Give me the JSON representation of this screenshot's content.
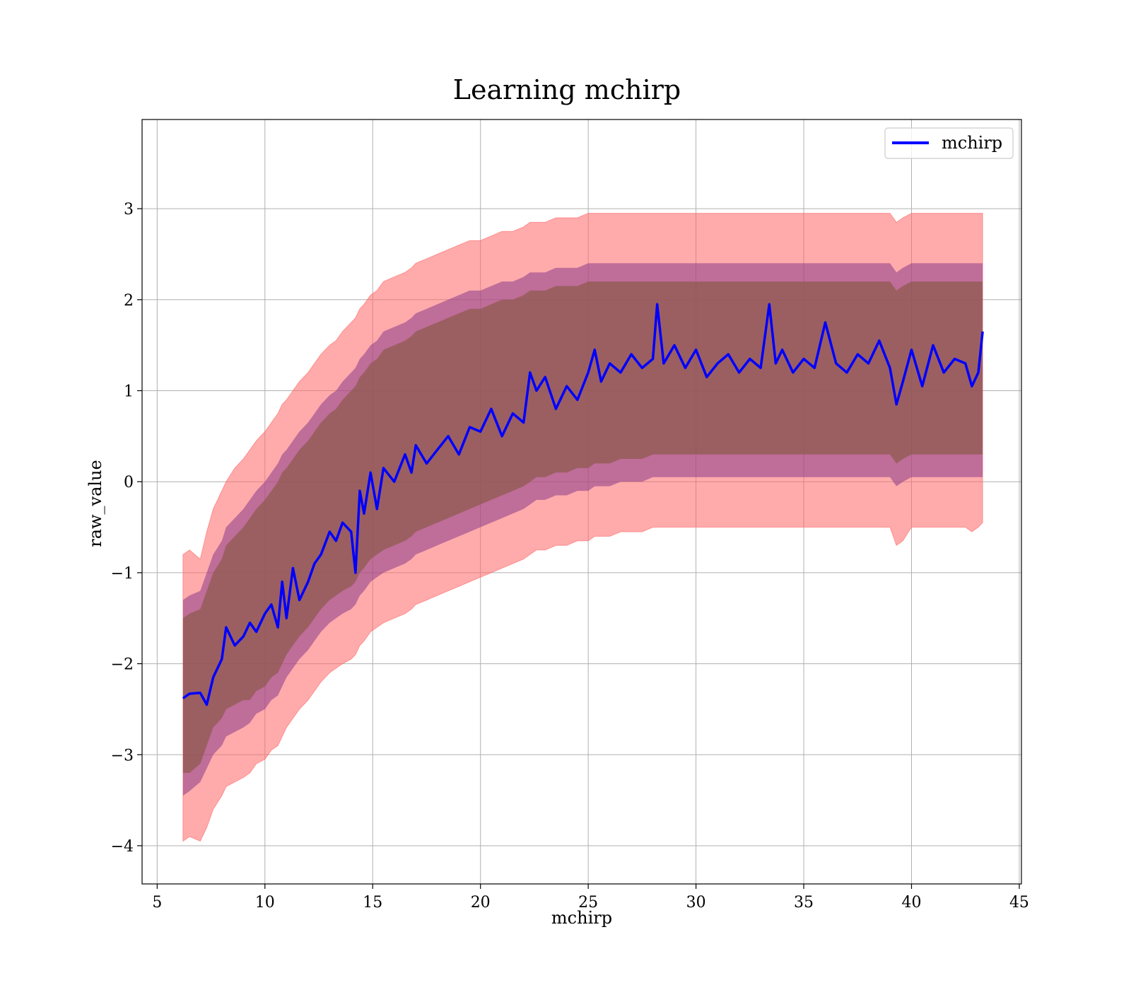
{
  "chart_data": {
    "type": "line",
    "title": "Learning mchirp",
    "xlabel": "mchirp",
    "ylabel": "raw_value",
    "xlim": [
      4.3,
      45.1
    ],
    "ylim": [
      -4.42,
      3.98
    ],
    "x_ticks": [
      5,
      10,
      15,
      20,
      25,
      30,
      35,
      40,
      45
    ],
    "y_ticks": [
      -4,
      -3,
      -2,
      -1,
      0,
      1,
      2,
      3
    ],
    "x_tick_labels": [
      "5",
      "10",
      "15",
      "20",
      "25",
      "30",
      "35",
      "40",
      "45"
    ],
    "y_tick_labels": [
      "−4",
      "−3",
      "−2",
      "−1",
      "0",
      "1",
      "2",
      "3"
    ],
    "grid": true,
    "legend": {
      "position": "top-right",
      "entries": [
        "mchirp"
      ]
    },
    "colors": {
      "line": "#0000ff",
      "band_outer": "#ff6666",
      "band_mid": "#8b3a8b",
      "band_inner": "#8b5a4a"
    },
    "series": [
      {
        "name": "mchirp",
        "x": [
          6.2,
          6.5,
          7.0,
          7.3,
          7.6,
          8.0,
          8.2,
          8.6,
          9.0,
          9.3,
          9.6,
          10.0,
          10.3,
          10.6,
          10.8,
          11.0,
          11.3,
          11.6,
          12.0,
          12.3,
          12.6,
          13.0,
          13.3,
          13.6,
          14.0,
          14.2,
          14.4,
          14.6,
          14.9,
          15.2,
          15.5,
          16.0,
          16.5,
          16.8,
          17.0,
          17.5,
          18.0,
          18.5,
          19.0,
          19.5,
          20.0,
          20.5,
          21.0,
          21.5,
          22.0,
          22.3,
          22.6,
          23.0,
          23.5,
          24.0,
          24.5,
          25.0,
          25.3,
          25.6,
          26.0,
          26.5,
          27.0,
          27.5,
          28.0,
          28.2,
          28.5,
          29.0,
          29.5,
          30.0,
          30.5,
          31.0,
          31.5,
          32.0,
          32.5,
          33.0,
          33.4,
          33.7,
          34.0,
          34.5,
          35.0,
          35.5,
          36.0,
          36.5,
          37.0,
          37.5,
          38.0,
          38.5,
          39.0,
          39.3,
          39.6,
          40.0,
          40.5,
          41.0,
          41.5,
          42.0,
          42.5,
          42.8,
          43.1,
          43.3
        ],
        "y": [
          -2.38,
          -2.33,
          -2.32,
          -2.45,
          -2.15,
          -1.95,
          -1.6,
          -1.8,
          -1.7,
          -1.55,
          -1.65,
          -1.45,
          -1.35,
          -1.6,
          -1.1,
          -1.5,
          -0.95,
          -1.3,
          -1.1,
          -0.9,
          -0.8,
          -0.55,
          -0.65,
          -0.45,
          -0.55,
          -1.0,
          -0.1,
          -0.35,
          0.1,
          -0.3,
          0.15,
          0.0,
          0.3,
          0.1,
          0.4,
          0.2,
          0.35,
          0.5,
          0.3,
          0.6,
          0.55,
          0.8,
          0.5,
          0.75,
          0.65,
          1.2,
          1.0,
          1.15,
          0.8,
          1.05,
          0.9,
          1.2,
          1.45,
          1.1,
          1.3,
          1.2,
          1.4,
          1.25,
          1.35,
          1.95,
          1.3,
          1.5,
          1.25,
          1.45,
          1.15,
          1.3,
          1.4,
          1.2,
          1.35,
          1.25,
          1.95,
          1.3,
          1.45,
          1.2,
          1.35,
          1.25,
          1.75,
          1.3,
          1.2,
          1.4,
          1.3,
          1.55,
          1.25,
          0.85,
          1.1,
          1.45,
          1.05,
          1.5,
          1.2,
          1.35,
          1.3,
          1.05,
          1.2,
          1.65
        ],
        "band_inner_lower": [
          -3.2,
          -3.2,
          -3.1,
          -2.9,
          -2.7,
          -2.6,
          -2.5,
          -2.45,
          -2.4,
          -2.4,
          -2.3,
          -2.25,
          -2.15,
          -2.1,
          -2.0,
          -1.9,
          -1.8,
          -1.7,
          -1.6,
          -1.5,
          -1.4,
          -1.3,
          -1.25,
          -1.2,
          -1.15,
          -1.1,
          -1.0,
          -0.95,
          -0.85,
          -0.8,
          -0.75,
          -0.7,
          -0.65,
          -0.6,
          -0.55,
          -0.5,
          -0.45,
          -0.4,
          -0.35,
          -0.3,
          -0.25,
          -0.2,
          -0.15,
          -0.1,
          -0.05,
          0.0,
          0.05,
          0.05,
          0.1,
          0.1,
          0.15,
          0.15,
          0.2,
          0.2,
          0.2,
          0.25,
          0.25,
          0.25,
          0.3,
          0.3,
          0.3,
          0.3,
          0.3,
          0.3,
          0.3,
          0.3,
          0.3,
          0.3,
          0.3,
          0.3,
          0.3,
          0.3,
          0.3,
          0.3,
          0.3,
          0.3,
          0.3,
          0.3,
          0.3,
          0.3,
          0.3,
          0.3,
          0.3,
          0.2,
          0.25,
          0.3,
          0.3,
          0.3,
          0.3,
          0.3,
          0.3,
          0.3,
          0.3,
          0.3
        ],
        "band_inner_upper": [
          -1.5,
          -1.45,
          -1.4,
          -1.2,
          -1.0,
          -0.85,
          -0.7,
          -0.6,
          -0.5,
          -0.4,
          -0.3,
          -0.2,
          -0.1,
          0.0,
          0.1,
          0.15,
          0.25,
          0.35,
          0.45,
          0.55,
          0.65,
          0.75,
          0.8,
          0.9,
          1.0,
          1.05,
          1.15,
          1.2,
          1.3,
          1.35,
          1.45,
          1.5,
          1.55,
          1.6,
          1.65,
          1.7,
          1.75,
          1.8,
          1.85,
          1.9,
          1.9,
          1.95,
          2.0,
          2.0,
          2.05,
          2.1,
          2.1,
          2.1,
          2.15,
          2.15,
          2.15,
          2.2,
          2.2,
          2.2,
          2.2,
          2.2,
          2.2,
          2.2,
          2.2,
          2.2,
          2.2,
          2.2,
          2.2,
          2.2,
          2.2,
          2.2,
          2.2,
          2.2,
          2.2,
          2.2,
          2.2,
          2.2,
          2.2,
          2.2,
          2.2,
          2.2,
          2.2,
          2.2,
          2.2,
          2.2,
          2.2,
          2.2,
          2.2,
          2.1,
          2.15,
          2.2,
          2.2,
          2.2,
          2.2,
          2.2,
          2.2,
          2.2,
          2.2,
          2.2
        ],
        "band_mid_lower": [
          -3.45,
          -3.4,
          -3.3,
          -3.15,
          -3.0,
          -2.9,
          -2.8,
          -2.75,
          -2.7,
          -2.65,
          -2.55,
          -2.5,
          -2.4,
          -2.35,
          -2.25,
          -2.15,
          -2.05,
          -1.95,
          -1.85,
          -1.75,
          -1.65,
          -1.55,
          -1.5,
          -1.45,
          -1.4,
          -1.35,
          -1.25,
          -1.2,
          -1.1,
          -1.05,
          -1.0,
          -0.95,
          -0.9,
          -0.85,
          -0.8,
          -0.75,
          -0.7,
          -0.65,
          -0.6,
          -0.55,
          -0.5,
          -0.45,
          -0.4,
          -0.35,
          -0.3,
          -0.25,
          -0.2,
          -0.2,
          -0.15,
          -0.15,
          -0.1,
          -0.1,
          -0.05,
          -0.05,
          -0.05,
          0.0,
          0.0,
          0.0,
          0.05,
          0.05,
          0.05,
          0.05,
          0.05,
          0.05,
          0.05,
          0.05,
          0.05,
          0.05,
          0.05,
          0.05,
          0.05,
          0.05,
          0.05,
          0.05,
          0.05,
          0.05,
          0.05,
          0.05,
          0.05,
          0.05,
          0.05,
          0.05,
          0.05,
          -0.05,
          0.0,
          0.05,
          0.05,
          0.05,
          0.05,
          0.05,
          0.05,
          0.05,
          0.05,
          0.05
        ],
        "band_mid_upper": [
          -1.3,
          -1.25,
          -1.2,
          -1.0,
          -0.8,
          -0.65,
          -0.5,
          -0.4,
          -0.3,
          -0.2,
          -0.1,
          0.0,
          0.1,
          0.2,
          0.3,
          0.35,
          0.45,
          0.55,
          0.65,
          0.75,
          0.85,
          0.95,
          1.0,
          1.1,
          1.2,
          1.25,
          1.35,
          1.4,
          1.5,
          1.55,
          1.65,
          1.7,
          1.75,
          1.8,
          1.85,
          1.9,
          1.95,
          2.0,
          2.05,
          2.1,
          2.1,
          2.15,
          2.2,
          2.2,
          2.25,
          2.3,
          2.3,
          2.3,
          2.35,
          2.35,
          2.35,
          2.4,
          2.4,
          2.4,
          2.4,
          2.4,
          2.4,
          2.4,
          2.4,
          2.4,
          2.4,
          2.4,
          2.4,
          2.4,
          2.4,
          2.4,
          2.4,
          2.4,
          2.4,
          2.4,
          2.4,
          2.4,
          2.4,
          2.4,
          2.4,
          2.4,
          2.4,
          2.4,
          2.4,
          2.4,
          2.4,
          2.4,
          2.4,
          2.3,
          2.35,
          2.4,
          2.4,
          2.4,
          2.4,
          2.4,
          2.4,
          2.4,
          2.4,
          2.4
        ],
        "band_outer_lower": [
          -3.95,
          -3.9,
          -3.95,
          -3.8,
          -3.6,
          -3.45,
          -3.35,
          -3.3,
          -3.25,
          -3.2,
          -3.1,
          -3.05,
          -2.95,
          -2.9,
          -2.8,
          -2.7,
          -2.6,
          -2.5,
          -2.4,
          -2.3,
          -2.2,
          -2.1,
          -2.05,
          -2.0,
          -1.95,
          -1.9,
          -1.8,
          -1.75,
          -1.65,
          -1.6,
          -1.55,
          -1.5,
          -1.45,
          -1.4,
          -1.35,
          -1.3,
          -1.25,
          -1.2,
          -1.15,
          -1.1,
          -1.05,
          -1.0,
          -0.95,
          -0.9,
          -0.85,
          -0.8,
          -0.75,
          -0.75,
          -0.7,
          -0.7,
          -0.65,
          -0.65,
          -0.6,
          -0.6,
          -0.6,
          -0.55,
          -0.55,
          -0.55,
          -0.5,
          -0.5,
          -0.5,
          -0.5,
          -0.5,
          -0.5,
          -0.5,
          -0.5,
          -0.5,
          -0.5,
          -0.5,
          -0.5,
          -0.5,
          -0.5,
          -0.5,
          -0.5,
          -0.5,
          -0.5,
          -0.5,
          -0.5,
          -0.5,
          -0.5,
          -0.5,
          -0.5,
          -0.5,
          -0.7,
          -0.65,
          -0.5,
          -0.5,
          -0.5,
          -0.5,
          -0.5,
          -0.5,
          -0.55,
          -0.5,
          -0.45
        ],
        "band_outer_upper": [
          -0.8,
          -0.75,
          -0.85,
          -0.55,
          -0.3,
          -0.1,
          0.0,
          0.15,
          0.25,
          0.35,
          0.45,
          0.55,
          0.65,
          0.75,
          0.85,
          0.9,
          1.0,
          1.1,
          1.2,
          1.3,
          1.4,
          1.5,
          1.55,
          1.65,
          1.75,
          1.8,
          1.9,
          1.95,
          2.05,
          2.1,
          2.2,
          2.25,
          2.3,
          2.35,
          2.4,
          2.45,
          2.5,
          2.55,
          2.6,
          2.65,
          2.65,
          2.7,
          2.75,
          2.75,
          2.8,
          2.85,
          2.85,
          2.85,
          2.9,
          2.9,
          2.9,
          2.95,
          2.95,
          2.95,
          2.95,
          2.95,
          2.95,
          2.95,
          2.95,
          2.95,
          2.95,
          2.95,
          2.95,
          2.95,
          2.95,
          2.95,
          2.95,
          2.95,
          2.95,
          2.95,
          2.95,
          2.95,
          2.95,
          2.95,
          2.95,
          2.95,
          2.95,
          2.95,
          2.95,
          2.95,
          2.95,
          2.95,
          2.95,
          2.85,
          2.9,
          2.95,
          2.95,
          2.95,
          2.95,
          2.95,
          2.95,
          2.95,
          2.95,
          2.95
        ]
      }
    ]
  }
}
